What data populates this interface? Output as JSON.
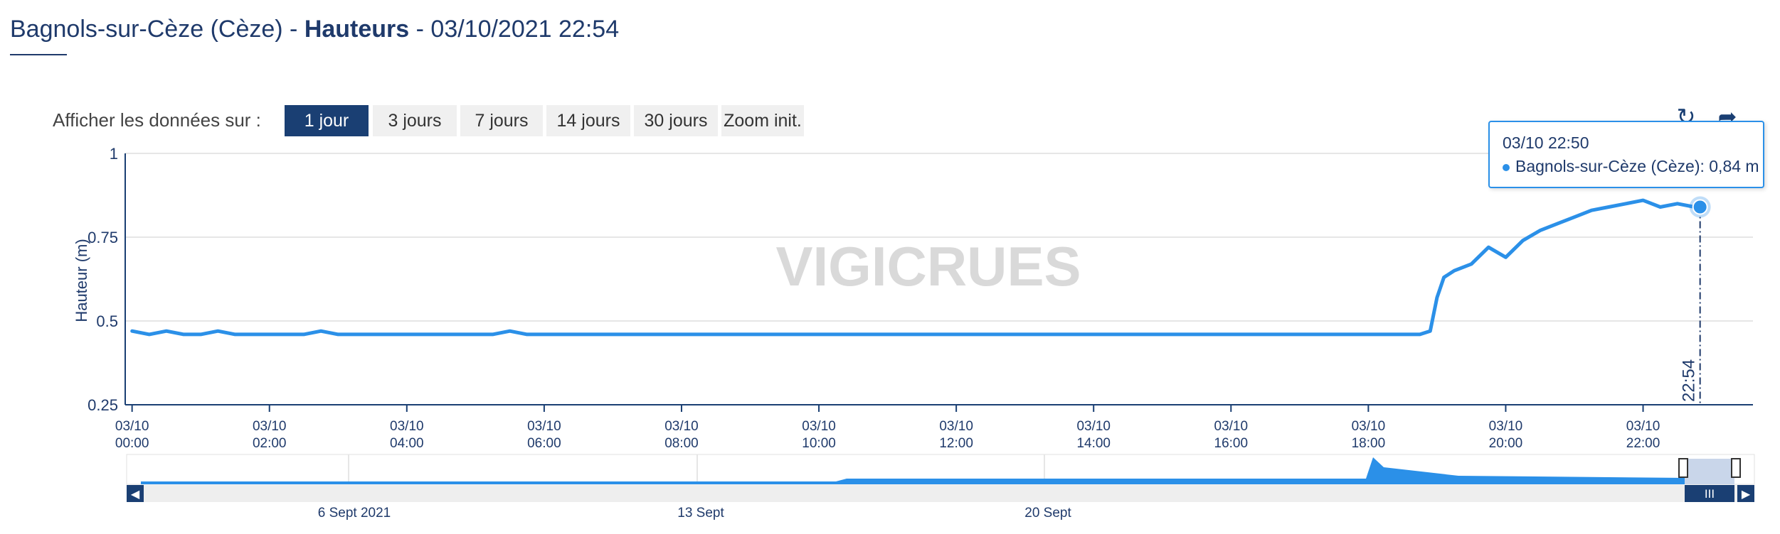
{
  "header": {
    "station": "Bagnols-sur-Cèze (Cèze)",
    "sep1": " - ",
    "measure": "Hauteurs",
    "sep2": " - ",
    "datetime": "03/10/2021 22:54"
  },
  "range_selector": {
    "label": "Afficher les données sur :",
    "buttons": [
      "1 jour",
      "3 jours",
      "7 jours",
      "14 jours",
      "30 jours",
      "Zoom init."
    ],
    "active": "1 jour"
  },
  "toolbar": {
    "icons": [
      "refresh-icon",
      "share-icon"
    ]
  },
  "watermark": "VIGICRUES",
  "tooltip": {
    "time": "03/10 22:50",
    "series": "Bagnols-sur-Cèze (Cèze)",
    "value": ": 0,84 m"
  },
  "crosshair_label": "22:54",
  "colors": {
    "series": "#2b90e8",
    "navy": "#1a3f73",
    "grid": "#e6e6e6"
  },
  "chart_data": {
    "type": "line",
    "ylabel": "Hauteur (m)",
    "ylim": [
      0.25,
      1
    ],
    "yticks": [
      "0.25",
      "0.5",
      "0.75",
      "1"
    ],
    "xlim_hours": [
      -0.1,
      23.6
    ],
    "xticks": [
      {
        "line1": "03/10",
        "line2": "00:00"
      },
      {
        "line1": "03/10",
        "line2": "02:00"
      },
      {
        "line1": "03/10",
        "line2": "04:00"
      },
      {
        "line1": "03/10",
        "line2": "06:00"
      },
      {
        "line1": "03/10",
        "line2": "08:00"
      },
      {
        "line1": "03/10",
        "line2": "10:00"
      },
      {
        "line1": "03/10",
        "line2": "12:00"
      },
      {
        "line1": "03/10",
        "line2": "14:00"
      },
      {
        "line1": "03/10",
        "line2": "16:00"
      },
      {
        "line1": "03/10",
        "line2": "18:00"
      },
      {
        "line1": "03/10",
        "line2": "20:00"
      },
      {
        "line1": "03/10",
        "line2": "22:00"
      }
    ],
    "series": [
      {
        "name": "Bagnols-sur-Cèze (Cèze)",
        "x_hours": [
          0.0,
          0.25,
          0.5,
          0.75,
          1.0,
          1.25,
          1.5,
          1.75,
          2.0,
          2.25,
          2.5,
          2.75,
          3.0,
          3.25,
          3.5,
          3.75,
          4.0,
          4.25,
          4.5,
          4.75,
          5.0,
          5.25,
          5.5,
          5.75,
          6.0,
          6.25,
          6.5,
          6.75,
          7.0,
          7.25,
          7.5,
          7.75,
          8.0,
          8.25,
          8.5,
          8.75,
          9.0,
          9.25,
          9.5,
          9.75,
          10.0,
          10.25,
          10.5,
          10.75,
          11.0,
          11.25,
          11.5,
          11.75,
          12.0,
          12.25,
          12.5,
          12.75,
          13.0,
          13.25,
          13.5,
          13.75,
          14.0,
          14.25,
          14.5,
          14.75,
          15.0,
          15.25,
          15.5,
          15.75,
          16.0,
          16.25,
          16.5,
          16.75,
          17.0,
          17.25,
          17.5,
          17.75,
          18.0,
          18.25,
          18.5,
          18.75,
          18.9,
          19.0,
          19.1,
          19.25,
          19.5,
          19.75,
          20.0,
          20.25,
          20.5,
          20.75,
          21.0,
          21.25,
          21.5,
          21.75,
          22.0,
          22.25,
          22.5,
          22.75,
          22.83
        ],
        "values": [
          0.47,
          0.46,
          0.47,
          0.46,
          0.46,
          0.47,
          0.46,
          0.46,
          0.46,
          0.46,
          0.46,
          0.47,
          0.46,
          0.46,
          0.46,
          0.46,
          0.46,
          0.46,
          0.46,
          0.46,
          0.46,
          0.46,
          0.47,
          0.46,
          0.46,
          0.46,
          0.46,
          0.46,
          0.46,
          0.46,
          0.46,
          0.46,
          0.46,
          0.46,
          0.46,
          0.46,
          0.46,
          0.46,
          0.46,
          0.46,
          0.46,
          0.46,
          0.46,
          0.46,
          0.46,
          0.46,
          0.46,
          0.46,
          0.46,
          0.46,
          0.46,
          0.46,
          0.46,
          0.46,
          0.46,
          0.46,
          0.46,
          0.46,
          0.46,
          0.46,
          0.46,
          0.46,
          0.46,
          0.46,
          0.46,
          0.46,
          0.46,
          0.46,
          0.46,
          0.46,
          0.46,
          0.46,
          0.46,
          0.46,
          0.46,
          0.46,
          0.47,
          0.57,
          0.63,
          0.65,
          0.67,
          0.72,
          0.69,
          0.74,
          0.77,
          0.79,
          0.81,
          0.83,
          0.84,
          0.85,
          0.86,
          0.84,
          0.85,
          0.84,
          0.84
        ]
      }
    ],
    "tooltip_point": {
      "x_hours": 22.83,
      "value": 0.84
    },
    "navigator": {
      "labels": [
        "6 Sept 2021",
        "13 Sept",
        "20 Sept"
      ]
    }
  }
}
